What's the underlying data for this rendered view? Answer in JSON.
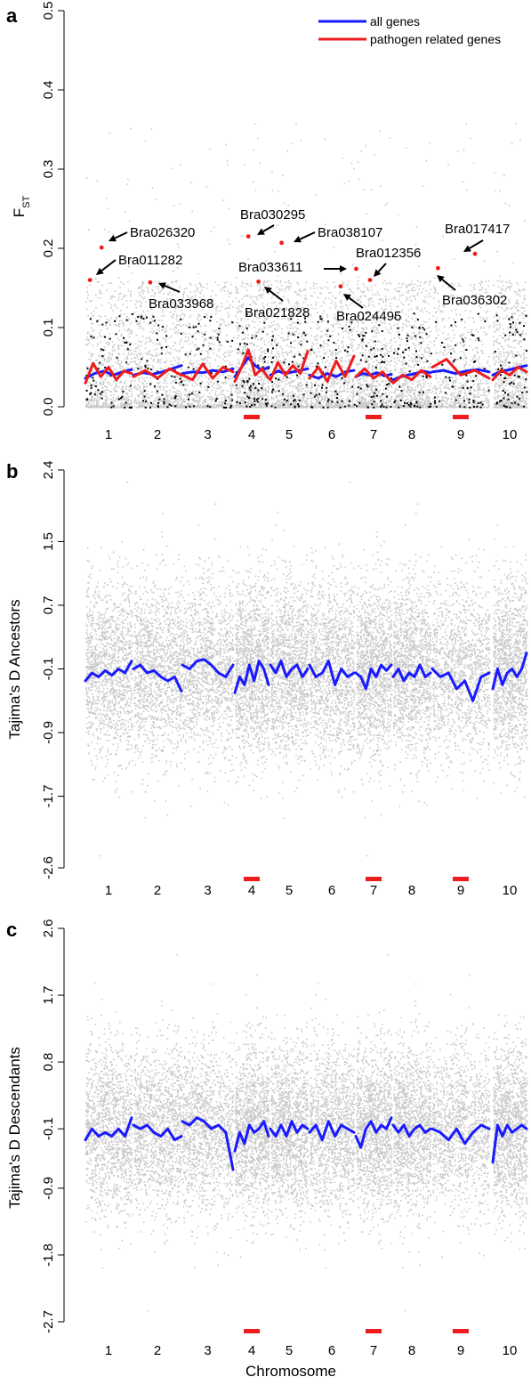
{
  "colors": {
    "background_points": "#c8c8c8",
    "pathogen_points": "#000000",
    "all_genes": "#1a1aff",
    "pathogen_genes": "#ee1c1c",
    "highlight_bar": "#ee1c1c",
    "axis": "#000000"
  },
  "xlabel": "Chromosome",
  "chart_data": [
    {
      "type": "scatter",
      "panel": "a",
      "ylabel_main": "F",
      "ylabel_sub": "ST",
      "ylim": [
        0,
        0.5
      ],
      "yticks": [
        "0.0",
        "0.1",
        "0.2",
        "0.3",
        "0.4",
        "0.5"
      ],
      "ytick_values": [
        0,
        0.1,
        0.2,
        0.3,
        0.4,
        0.5
      ],
      "chromosomes": [
        "1",
        "2",
        "3",
        "4",
        "5",
        "6",
        "7",
        "8",
        "9",
        "10"
      ],
      "highlighted_chromosomes": [
        "4",
        "7",
        "9"
      ],
      "legend": [
        "all genes",
        "pathogen related genes"
      ],
      "legend_position": "top-right",
      "all_genes_trend": [
        [
          0.036,
          0.042,
          0.045,
          0.04,
          0.044,
          0.047
        ],
        [
          0.04,
          0.043,
          0.041,
          0.044,
          0.048,
          0.052
        ],
        [
          0.042,
          0.044,
          0.043,
          0.046,
          0.044,
          0.048
        ],
        [
          0.038,
          0.05,
          0.062,
          0.052,
          0.046,
          0.05
        ],
        [
          0.04,
          0.045,
          0.042,
          0.044,
          0.046,
          0.048
        ],
        [
          0.04,
          0.036,
          0.042,
          0.038,
          0.044,
          0.046
        ],
        [
          0.038,
          0.042,
          0.04,
          0.043,
          0.039,
          0.041
        ],
        [
          0.034,
          0.038,
          0.04,
          0.042,
          0.045,
          0.043
        ],
        [
          0.044,
          0.046,
          0.042,
          0.045,
          0.047,
          0.044
        ],
        [
          0.04,
          0.044,
          0.046,
          0.048,
          0.05,
          0.052
        ]
      ],
      "pathogen_trend": [
        [
          0.03,
          0.055,
          0.038,
          0.05,
          0.034,
          0.045,
          0.042
        ],
        [
          0.038,
          0.046,
          0.036,
          0.048,
          0.04
        ],
        [
          0.04,
          0.034,
          0.054,
          0.036,
          0.05,
          0.044
        ],
        [
          0.032,
          0.05,
          0.072,
          0.04,
          0.048,
          0.036
        ],
        [
          0.034,
          0.056,
          0.04,
          0.052,
          0.042,
          0.07
        ],
        [
          0.036,
          0.05,
          0.032,
          0.058,
          0.038,
          0.064
        ],
        [
          0.038,
          0.048,
          0.036,
          0.044,
          0.032
        ],
        [
          0.03,
          0.04,
          0.034,
          0.046,
          0.038
        ],
        [
          0.05,
          0.06,
          0.04,
          0.046,
          0.036
        ],
        [
          0.034,
          0.046,
          0.04,
          0.05,
          0.044
        ]
      ],
      "annotations": [
        {
          "gene": "Bra026320",
          "chrom": 1,
          "frac": 0.35,
          "fst": 0.201
        },
        {
          "gene": "Bra011282",
          "chrom": 1,
          "frac": 0.1,
          "fst": 0.16
        },
        {
          "gene": "Bra033968",
          "chrom": 2,
          "frac": 0.35,
          "fst": 0.157
        },
        {
          "gene": "Bra030295",
          "chrom": 4,
          "frac": 0.4,
          "fst": 0.215
        },
        {
          "gene": "Bra021828",
          "chrom": 4,
          "frac": 0.7,
          "fst": 0.158
        },
        {
          "gene": "Bra038107",
          "chrom": 5,
          "frac": 0.3,
          "fst": 0.207
        },
        {
          "gene": "Bra033611",
          "chrom": 6,
          "frac": 1.05,
          "fst": 0.174
        },
        {
          "gene": "Bra024495",
          "chrom": 6,
          "frac": 0.7,
          "fst": 0.152
        },
        {
          "gene": "Bra012356",
          "chrom": 7,
          "frac": 0.4,
          "fst": 0.16
        },
        {
          "gene": "Bra036302",
          "chrom": 9,
          "frac": 0.1,
          "fst": 0.175
        },
        {
          "gene": "Bra017417",
          "chrom": 9,
          "frac": 0.75,
          "fst": 0.193
        }
      ]
    },
    {
      "type": "scatter",
      "panel": "b",
      "ylabel": "Tajima's D Ancestors",
      "ylim": [
        -2.6,
        2.4
      ],
      "yticks": [
        "-2.6",
        "-1.7",
        "-0.9",
        "-0.1",
        "0.7",
        "1.5",
        "2.4"
      ],
      "ytick_values": [
        -2.6,
        -1.7,
        -0.9,
        -0.1,
        0.7,
        1.5,
        2.4
      ],
      "chromosomes": [
        "1",
        "2",
        "3",
        "4",
        "5",
        "6",
        "7",
        "8",
        "9",
        "10"
      ],
      "highlighted_chromosomes": [
        "4",
        "7",
        "9"
      ],
      "trend": [
        [
          -0.25,
          -0.15,
          -0.2,
          -0.12,
          -0.18,
          -0.1,
          -0.15,
          0.0
        ],
        [
          -0.1,
          -0.05,
          -0.15,
          -0.12,
          -0.2,
          -0.25,
          -0.2,
          -0.38
        ],
        [
          -0.05,
          -0.1,
          0.0,
          0.02,
          -0.05,
          -0.15,
          -0.2,
          -0.05
        ],
        [
          -0.4,
          -0.2,
          -0.3,
          -0.05,
          -0.25,
          0.0,
          -0.1,
          -0.3
        ],
        [
          -0.05,
          -0.15,
          0.0,
          -0.2,
          -0.1,
          -0.05,
          -0.2,
          -0.1
        ],
        [
          -0.05,
          -0.2,
          -0.15,
          0.0,
          -0.3,
          -0.1,
          -0.2,
          -0.15
        ],
        [
          -0.15,
          -0.2,
          -0.35,
          -0.1,
          -0.2,
          -0.05,
          -0.12,
          -0.05
        ],
        [
          -0.2,
          -0.1,
          -0.25,
          -0.15,
          -0.2,
          -0.05,
          -0.2,
          -0.15
        ],
        [
          -0.1,
          -0.2,
          -0.15,
          -0.35,
          -0.25,
          -0.5,
          -0.2,
          -0.15
        ],
        [
          -0.35,
          -0.1,
          -0.3,
          -0.15,
          -0.1,
          -0.2,
          -0.1,
          0.1
        ]
      ]
    },
    {
      "type": "scatter",
      "panel": "c",
      "ylabel": "Tajima's D Descendants",
      "ylim": [
        -2.7,
        2.6
      ],
      "yticks": [
        "-2.7",
        "-1.8",
        "-0.9",
        "-0.1",
        "0.8",
        "1.7",
        "2.6"
      ],
      "ytick_values": [
        -2.7,
        -1.8,
        -0.9,
        -0.1,
        0.8,
        1.7,
        2.6
      ],
      "chromosomes": [
        "1",
        "2",
        "3",
        "4",
        "5",
        "6",
        "7",
        "8",
        "9",
        "10"
      ],
      "highlighted_chromosomes": [
        "4",
        "7",
        "9"
      ],
      "trend": [
        [
          -0.25,
          -0.1,
          -0.2,
          -0.15,
          -0.2,
          -0.1,
          -0.2,
          0.05
        ],
        [
          -0.05,
          -0.1,
          -0.05,
          -0.15,
          -0.2,
          -0.1,
          -0.25,
          -0.2
        ],
        [
          0.0,
          -0.05,
          0.05,
          0.0,
          -0.1,
          -0.05,
          -0.15,
          -0.65
        ],
        [
          -0.4,
          -0.15,
          -0.3,
          -0.05,
          -0.15,
          -0.1,
          0.0,
          -0.2
        ],
        [
          -0.1,
          -0.2,
          -0.05,
          -0.2,
          0.0,
          -0.15,
          -0.05,
          -0.1
        ],
        [
          -0.15,
          -0.05,
          -0.25,
          0.0,
          -0.2,
          -0.05,
          -0.1,
          -0.15
        ],
        [
          -0.2,
          -0.35,
          -0.1,
          0.0,
          -0.15,
          -0.05,
          -0.1,
          0.05
        ],
        [
          -0.05,
          -0.15,
          -0.05,
          -0.2,
          -0.1,
          -0.05,
          -0.15,
          -0.1
        ],
        [
          -0.1,
          -0.15,
          -0.25,
          -0.1,
          -0.3,
          -0.15,
          -0.05,
          -0.1
        ],
        [
          -0.55,
          -0.05,
          -0.2,
          -0.05,
          -0.15,
          -0.1,
          -0.05,
          -0.1
        ]
      ]
    }
  ]
}
